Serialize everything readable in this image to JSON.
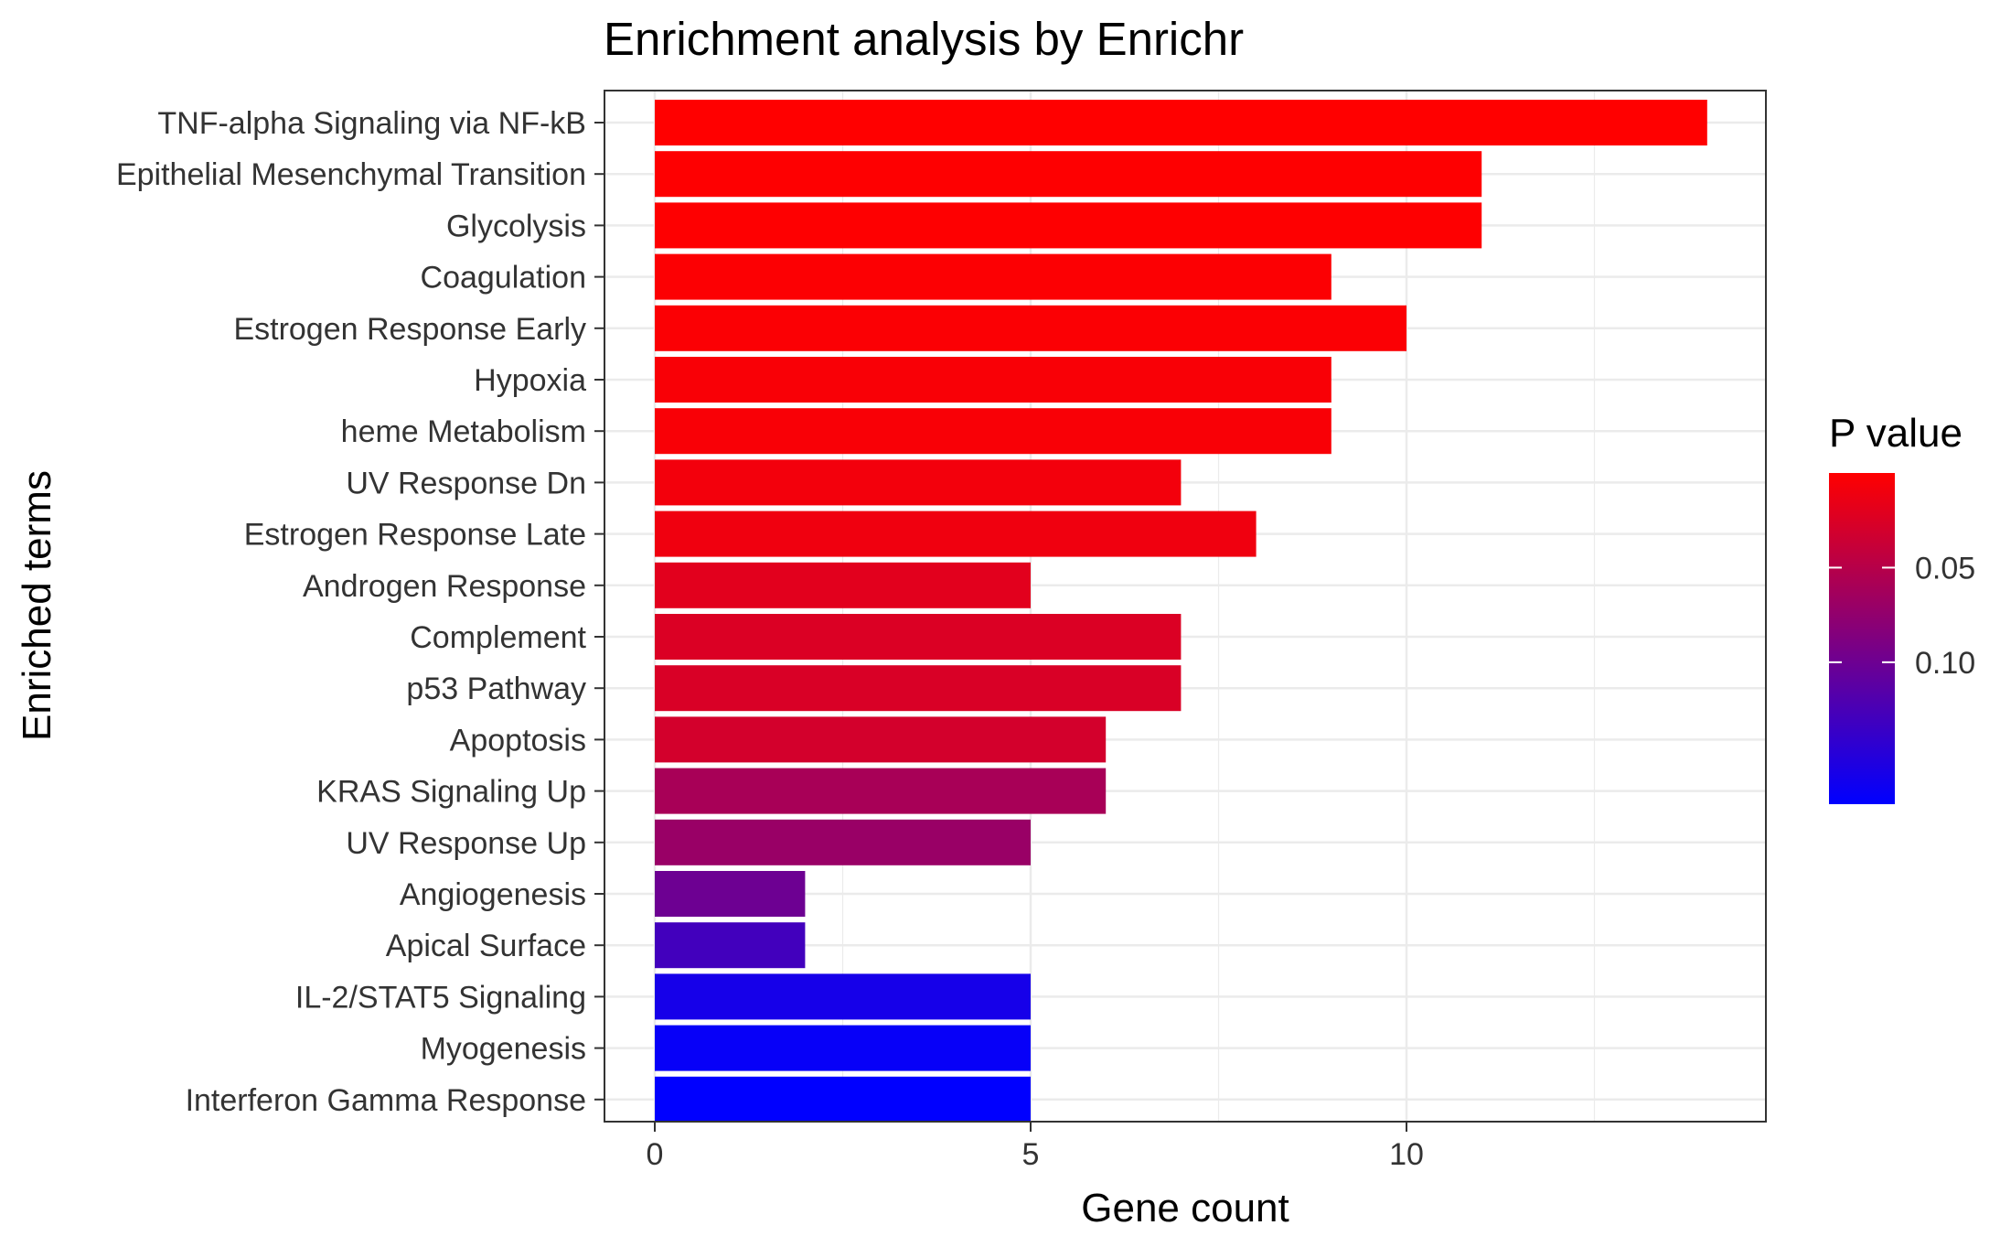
{
  "chart_data": {
    "type": "bar",
    "orientation": "horizontal",
    "title": "Enrichment analysis by Enrichr",
    "xlabel": "Gene count",
    "ylabel": "Enriched terms",
    "xlim": [
      -0.7,
      14
    ],
    "x_ticks": [
      0,
      5,
      10
    ],
    "x_tick_labels": [
      "0",
      "5",
      "10"
    ],
    "grid": true,
    "theme": "bw",
    "categories": [
      "TNF-alpha Signaling via NF-kB",
      "Epithelial Mesenchymal Transition",
      "Glycolysis",
      "Coagulation",
      "Estrogen Response Early",
      "Hypoxia",
      "heme Metabolism",
      "UV Response Dn",
      "Estrogen Response Late",
      "Androgen Response",
      "Complement",
      "p53 Pathway",
      "Apoptosis",
      "KRAS Signaling Up",
      "UV Response Up",
      "Angiogenesis",
      "Apical Surface",
      "IL-2/STAT5 Signaling",
      "Myogenesis",
      "Interferon Gamma Response"
    ],
    "values": [
      14,
      11,
      11,
      9,
      10,
      9,
      9,
      7,
      8,
      5,
      7,
      7,
      6,
      6,
      5,
      2,
      2,
      5,
      5,
      5
    ],
    "p_values": [
      0.0002,
      0.0005,
      0.0006,
      0.002,
      0.003,
      0.004,
      0.004,
      0.008,
      0.01,
      0.02,
      0.025,
      0.026,
      0.03,
      0.06,
      0.07,
      0.1,
      0.13,
      0.16,
      0.17,
      0.175
    ],
    "legend": {
      "title": "P value",
      "placement": "right",
      "ticks": [
        0.05,
        0.1
      ],
      "tick_labels": [
        "0.05",
        "0.10"
      ],
      "range": [
        0.0,
        0.175
      ],
      "low_color": "#FF0000",
      "high_color": "#0000FF"
    }
  }
}
